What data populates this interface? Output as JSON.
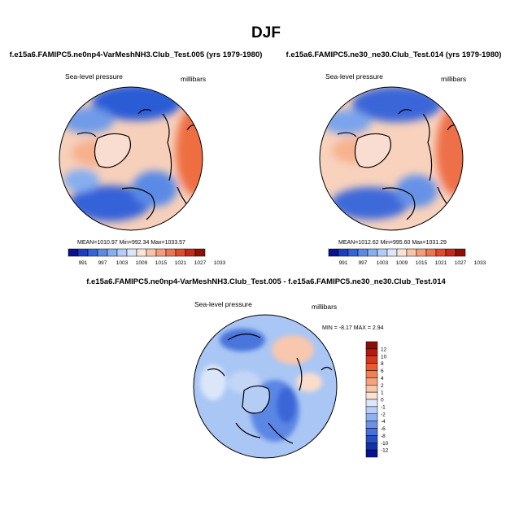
{
  "figure_title": "DJF",
  "colors": {
    "hbar": [
      "#08118e",
      "#1a3ec2",
      "#3563d8",
      "#5b8ae6",
      "#86aef0",
      "#b3cdf6",
      "#dbe6f9",
      "#fbe3d6",
      "#f9c3a7",
      "#f59d7a",
      "#ee7552",
      "#e24a2c",
      "#c4291a",
      "#8e1004"
    ],
    "vbar": [
      "#8e1004",
      "#b01d0f",
      "#d63a1c",
      "#ee5a30",
      "#f47f54",
      "#f6a27d",
      "#f8c5a9",
      "#fbe2d3",
      "#dde7f8",
      "#b8cff5",
      "#8fb1ee",
      "#6a92e5",
      "#4770d9",
      "#2a4fc5",
      "#1432a8",
      "#08118e"
    ]
  },
  "chart_data": [
    {
      "type": "heatmap",
      "name": "test-panel",
      "title": "f.e15a6.FAMIPC5.ne0np4-VarMeshNH3.Club_Test.005 (yrs 1979-1980)",
      "variable": "Sea-level pressure",
      "units": "millibars",
      "projection": "north-polar-stereographic",
      "stats": {
        "mean_label": "MEAN=",
        "mean": "1010.97",
        "min_label": "Min=",
        "min": "992.34",
        "max_label": "Max=",
        "max": "1033.57"
      },
      "colorbar_labels": [
        "991",
        "997",
        "1003",
        "1009",
        "1015",
        "1021",
        "1027",
        "1033"
      ]
    },
    {
      "type": "heatmap",
      "name": "control-panel",
      "title": "f.e15a6.FAMIPC5.ne30_ne30.Club_Test.014 (yrs 1979-1980)",
      "variable": "Sea-level pressure",
      "units": "millibars",
      "projection": "north-polar-stereographic",
      "stats": {
        "mean_label": "MEAN=",
        "mean": "1012.62",
        "min_label": "Min=",
        "min": "995.60",
        "max_label": "Max=",
        "max": "1031.29"
      },
      "colorbar_labels": [
        "991",
        "997",
        "1003",
        "1009",
        "1015",
        "1021",
        "1027",
        "1033"
      ]
    },
    {
      "type": "heatmap",
      "name": "difference-panel",
      "title": "f.e15a6.FAMIPC5.ne0np4-VarMeshNH3.Club_Test.005 - f.e15a6.FAMIPC5.ne30_ne30.Club_Test.014",
      "variable": "Sea-level pressure",
      "units": "millibars",
      "projection": "north-polar-stereographic",
      "stats": {
        "min_label": "MIN =",
        "min": "-8.17",
        "max_label": "MAX =",
        "max": "2.94"
      },
      "colorbar_labels": [
        "12",
        "10",
        "8",
        "6",
        "4",
        "2",
        "1",
        "0",
        "-1",
        "-2",
        "-4",
        "-6",
        "-8",
        "-10",
        "-12"
      ]
    }
  ]
}
